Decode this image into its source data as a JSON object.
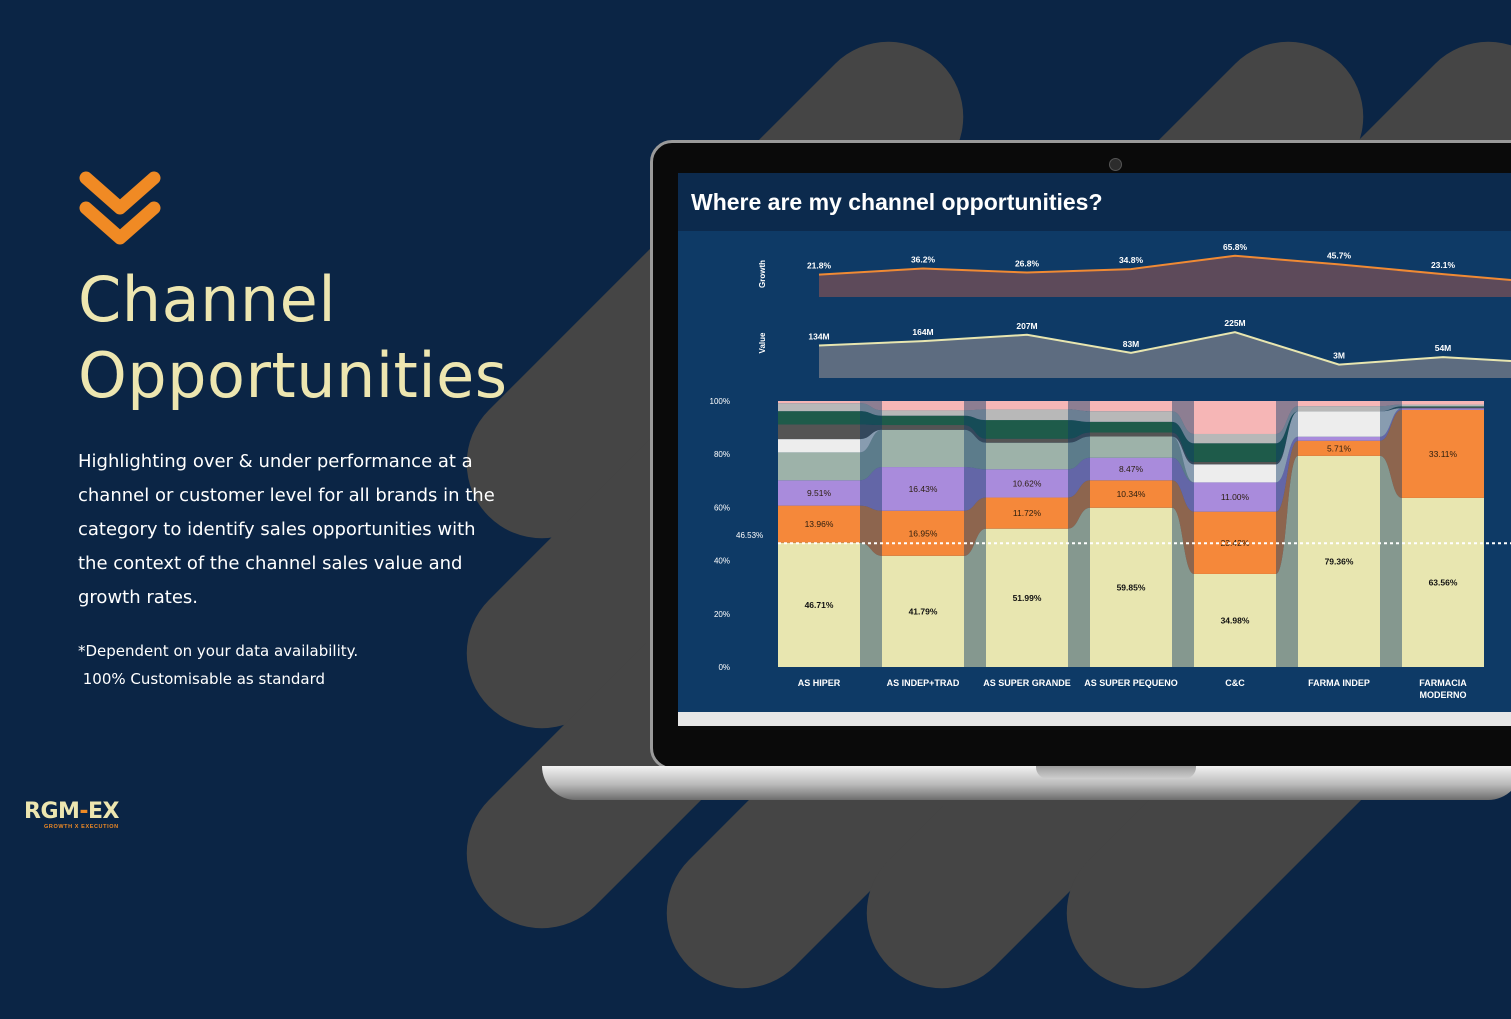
{
  "colors": {
    "background": "#0b2545",
    "accent": "#f08a24",
    "title": "#ede6b0",
    "pill": "#454545",
    "screen_bg": "#0e3a66"
  },
  "hero": {
    "icon": "double-chevron-down-icon",
    "title_line1": "Channel",
    "title_line2": "Opportunities",
    "description": "Highlighting over & under performance at a channel or customer level for all brands in the category to identify sales opportunities with the context of the channel sales value and growth rates.",
    "note_line1": "*Dependent on your data availability.",
    "note_line2": " 100% Customisable as standard"
  },
  "logo": {
    "main_left": "RGM",
    "main_dash": "-",
    "main_right": "EX",
    "tagline": "GROWTH X EXECUTION"
  },
  "dashboard": {
    "title": "Where are my channel opportunities?",
    "growth_label": "Growth",
    "value_label": "Value",
    "reference_value": "46.53%"
  },
  "chart_data": [
    {
      "type": "area",
      "title": "",
      "ylabel": "Growth",
      "categories": [
        "AS HIPER",
        "AS INDEP+TRAD",
        "AS SUPER GRANDE",
        "AS SUPER PEQUENO",
        "C&C",
        "FARMA INDEP",
        "FARMACIA MODERNO"
      ],
      "values": [
        21.8,
        36.2,
        26.8,
        34.8,
        65.8,
        45.7,
        23.1
      ],
      "labels": [
        "21.8%",
        "36.2%",
        "26.8%",
        "34.8%",
        "65.8%",
        "45.7%",
        "23.1%"
      ]
    },
    {
      "type": "area",
      "title": "",
      "ylabel": "Value",
      "categories": [
        "AS HIPER",
        "AS INDEP+TRAD",
        "AS SUPER GRANDE",
        "AS SUPER PEQUENO",
        "C&C",
        "FARMA INDEP",
        "FARMACIA MODERNO"
      ],
      "values": [
        134,
        164,
        207,
        83,
        225,
        3,
        54
      ],
      "labels": [
        "134M",
        "164M",
        "207M",
        "83M",
        "225M",
        "3M",
        "54M"
      ]
    },
    {
      "type": "bar",
      "stacked": true,
      "categories": [
        "AS HIPER",
        "AS INDEP+TRAD",
        "AS SUPER GRANDE",
        "AS SUPER PEQUENO",
        "C&C",
        "FARMA INDEP",
        "FARMACIA MODERNO"
      ],
      "yticks": [
        "0%",
        "20%",
        "40%",
        "60%",
        "80%",
        "100%"
      ],
      "ylim": [
        0,
        100
      ],
      "reference_line": 46.53,
      "series": [
        {
          "color": "#e8e6b0",
          "values": [
            46.71,
            41.79,
            51.99,
            59.85,
            34.98,
            79.36,
            63.56
          ],
          "labels": [
            "46.71%",
            "41.79%",
            "51.99%",
            "59.85%",
            "34.98%",
            "79.36%",
            "63.56%"
          ]
        },
        {
          "color": "#f5883a",
          "values": [
            13.96,
            16.95,
            11.72,
            10.34,
            23.42,
            5.71,
            33.11
          ],
          "labels": [
            "13.96%",
            "16.95%",
            "11.72%",
            "10.34%",
            "23.42%",
            "5.71%",
            "33.11%"
          ]
        },
        {
          "color": "#a98bdc",
          "values": [
            9.51,
            16.43,
            10.62,
            8.47,
            11.0,
            1.5,
            0.6
          ],
          "labels": [
            "9.51%",
            "16.43%",
            "10.62%",
            "8.47%",
            "11.00%",
            "",
            ""
          ]
        },
        {
          "color": "#9db2a9",
          "values": [
            10.5,
            14.0,
            10.0,
            8.0,
            0.0,
            0.0,
            0.0
          ],
          "labels": [
            "",
            "",
            "",
            "",
            "",
            "",
            ""
          ]
        },
        {
          "color": "#ededed",
          "values": [
            5.0,
            0.0,
            0.0,
            0.0,
            6.8,
            9.5,
            0.0
          ],
          "labels": [
            "",
            "",
            "",
            "",
            "",
            "",
            ""
          ]
        },
        {
          "color": "#545454",
          "values": [
            5.5,
            1.8,
            1.5,
            1.5,
            0.9,
            0.0,
            0.4
          ],
          "labels": [
            "",
            "",
            "",
            "",
            "",
            "",
            ""
          ]
        },
        {
          "color": "#1e5b4a",
          "values": [
            5.0,
            3.5,
            7.0,
            4.0,
            7.0,
            0.0,
            0.3
          ],
          "labels": [
            "",
            "",
            "",
            "",
            "",
            "",
            ""
          ]
        },
        {
          "color": "#b8b8b8",
          "values": [
            3.0,
            2.0,
            4.0,
            4.0,
            3.5,
            2.0,
            0.7
          ],
          "labels": [
            "",
            "",
            "",
            "",
            "",
            "",
            ""
          ]
        },
        {
          "color": "#f6b6b6",
          "values": [
            0.82,
            3.53,
            3.17,
            3.84,
            12.4,
            1.93,
            1.33
          ],
          "labels": [
            "",
            "",
            "",
            "",
            "",
            "",
            ""
          ]
        }
      ]
    }
  ]
}
